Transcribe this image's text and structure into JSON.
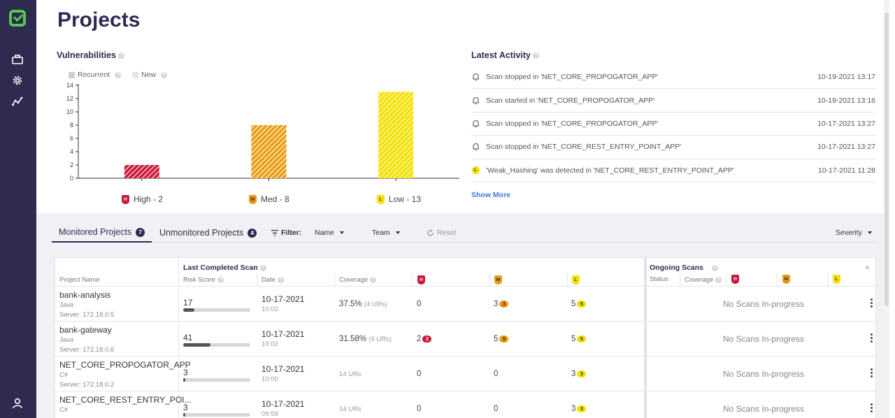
{
  "page": {
    "title": "Projects"
  },
  "sidebar": {
    "items": [
      {
        "icon": "briefcase-icon"
      },
      {
        "icon": "gear-icon"
      },
      {
        "icon": "analytics-icon"
      }
    ],
    "user_icon": "user-icon"
  },
  "vulnerabilities": {
    "title": "Vulnerabilities",
    "legend": {
      "recurrent": "Recurrent",
      "new": "New"
    },
    "severity_labels": {
      "high": "High - 2",
      "med": "Med - 8",
      "low": "Low - 13"
    }
  },
  "chart_data": {
    "type": "bar",
    "categories": [
      "High",
      "Med",
      "Low"
    ],
    "values": [
      2,
      8,
      13
    ],
    "colors": [
      "#c8183a",
      "#e69b1a",
      "#f3e000"
    ],
    "yticks": [
      0,
      2,
      4,
      6,
      8,
      10,
      12,
      14
    ],
    "ylim": [
      0,
      14
    ],
    "grid": false,
    "legend": [
      "Recurrent",
      "New"
    ],
    "legend_position": "top-left",
    "title": "",
    "xlabel": "",
    "ylabel": ""
  },
  "activity": {
    "title": "Latest Activity",
    "items": [
      {
        "icon": "bell-icon",
        "text": "Scan stopped in 'NET_CORE_PROPOGATOR_APP'",
        "time": "10-19-2021 13:17"
      },
      {
        "icon": "bell-icon",
        "text": "Scan started in 'NET_CORE_PROPOGATOR_APP'",
        "time": "10-19-2021 13:16"
      },
      {
        "icon": "bell-icon",
        "text": "Scan stopped in 'NET_CORE_PROPOGATOR_APP'",
        "time": "10-17-2021 13:27"
      },
      {
        "icon": "bell-icon",
        "text": "Scan stopped in 'NET_CORE_REST_ENTRY_POINT_APP'",
        "time": "10-17-2021 13:27"
      },
      {
        "icon": "low-badge-icon",
        "badge": "L",
        "text": "'Weak_Hashing' was detected in 'NET_CORE_REST_ENTRY_POINT_APP'",
        "time": "10-17-2021 11:28"
      }
    ],
    "show_more": "Show More"
  },
  "tabs": {
    "monitored": {
      "label": "Monitored Projects",
      "count": "7"
    },
    "unmonitored": {
      "label": "Unmonitored Projects",
      "count": "4"
    }
  },
  "filters": {
    "label": "Filter:",
    "name": "Name",
    "team": "Team",
    "reset": "Reset",
    "severity": "Severity"
  },
  "table": {
    "headers": {
      "project_name": "Project Name",
      "last_completed_scan": "Last Completed Scan",
      "risk_score": "Risk Score",
      "date": "Date",
      "coverage": "Coverage",
      "ongoing_scans": "Ongoing Scans",
      "status": "Status",
      "ongoing_coverage": "Coverage",
      "h": "H",
      "m": "M",
      "l": "L"
    },
    "rows": [
      {
        "name": "bank-analysis",
        "lang": "Java",
        "server": "Server: 172.18.0.5",
        "risk": "17",
        "risk_value": 17,
        "date": "10-17-2021",
        "time": "10:02",
        "coverage": "37.5%",
        "urs": "(4 URs)",
        "high": "0",
        "high_badge": "",
        "med": "3",
        "med_badge": "3",
        "low": "5",
        "low_badge": "5",
        "ongoing": "No Scans In-progress"
      },
      {
        "name": "bank-gateway",
        "lang": "Java",
        "server": "Server: 172.18.0.6",
        "risk": "41",
        "risk_value": 41,
        "date": "10-17-2021",
        "time": "10:02",
        "coverage": "31.58%",
        "urs": "(9 URs)",
        "high": "2",
        "high_badge": "2",
        "med": "5",
        "med_badge": "5",
        "low": "5",
        "low_badge": "5",
        "ongoing": "No Scans In-progress"
      },
      {
        "name": "NET_CORE_PROPOGATOR_APP",
        "lang": "C#",
        "server": "Server: 172.18.0.2",
        "risk": "3",
        "risk_value": 3,
        "date": "10-17-2021",
        "time": "10:00",
        "coverage": "",
        "urs": "14 URs",
        "high": "0",
        "high_badge": "",
        "med": "0",
        "med_badge": "",
        "low": "3",
        "low_badge": "3",
        "ongoing": "No Scans In-progress"
      },
      {
        "name": "NET_CORE_REST_ENTRY_POI...",
        "lang": "C#",
        "server": "",
        "risk": "3",
        "risk_value": 3,
        "date": "10-17-2021",
        "time": "09:59",
        "coverage": "",
        "urs": "14 URs",
        "high": "0",
        "high_badge": "",
        "med": "0",
        "med_badge": "",
        "low": "3",
        "low_badge": "3",
        "ongoing": "No Scans In-progress"
      }
    ]
  }
}
